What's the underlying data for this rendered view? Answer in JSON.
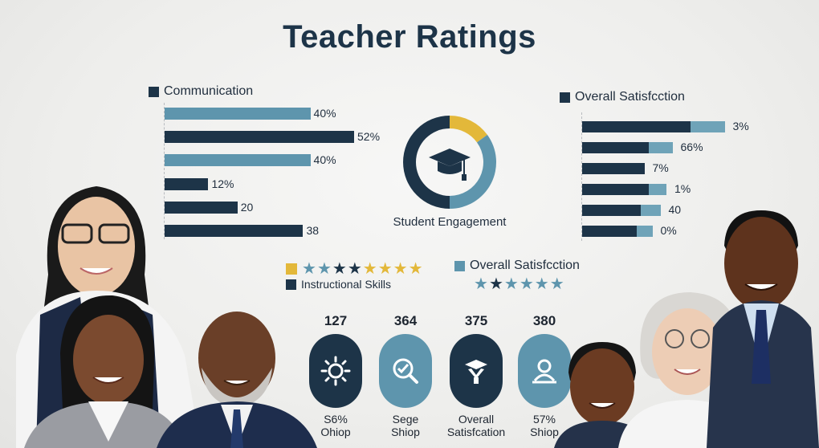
{
  "title": "Teacher Ratings",
  "colors": {
    "dark": "#1d3448",
    "teal": "#5e95ad",
    "gold": "#e3b83a",
    "lightTeal": "#6fa3b8"
  },
  "chart_data": [
    {
      "type": "bar",
      "orientation": "horizontal",
      "legend": "Communication",
      "values": [
        40,
        52,
        40,
        12,
        20,
        38
      ],
      "labels": [
        "40%",
        "52%",
        "40%",
        "12%",
        "20",
        "38"
      ],
      "colors": [
        "#5e95ad",
        "#1d3448",
        "#5e95ad",
        "#1d3448",
        "#1d3448",
        "#1d3448"
      ]
    },
    {
      "type": "pie",
      "label": "Student Engagement",
      "slices": [
        {
          "value": 15,
          "color": "#e3b83a"
        },
        {
          "value": 35,
          "color": "#5e95ad"
        },
        {
          "value": 50,
          "color": "#1d3448"
        }
      ]
    },
    {
      "type": "bar",
      "orientation": "horizontal",
      "stacked": true,
      "legend": "Overall Satisfcction",
      "labels": [
        "3%",
        "66%",
        "7%",
        "1%",
        "40",
        "0%"
      ],
      "series": [
        {
          "color": "#1d3448",
          "values": [
            54,
            33,
            31,
            33,
            29,
            27
          ]
        },
        {
          "color": "#6fa3b8",
          "values": [
            17,
            12,
            0,
            9,
            10,
            8
          ]
        }
      ]
    }
  ],
  "ratings": {
    "instructional": {
      "label": "Instructional Skills",
      "stars": [
        "teal",
        "teal",
        "dark",
        "dark",
        "gold",
        "gold",
        "gold",
        "gold"
      ]
    },
    "overall": {
      "label": "Overall Satisfcction",
      "stars": [
        "teal",
        "dark",
        "teal",
        "teal",
        "teal",
        "teal"
      ]
    }
  },
  "stats": [
    {
      "number": "127",
      "caption1": "S6%",
      "caption2": "Ohiop",
      "color": "#1d3448",
      "icon": "sun-icon"
    },
    {
      "number": "364",
      "caption1": "Sege",
      "caption2": "Shiop",
      "color": "#5e95ad",
      "icon": "magnify-check-icon"
    },
    {
      "number": "375",
      "caption1": "Overall",
      "caption2": "Satisfcation",
      "color": "#1d3448",
      "icon": "graduate-icon"
    },
    {
      "number": "380",
      "caption1": "57%",
      "caption2": "Shiop",
      "color": "#5e95ad",
      "icon": "user-icon"
    }
  ]
}
